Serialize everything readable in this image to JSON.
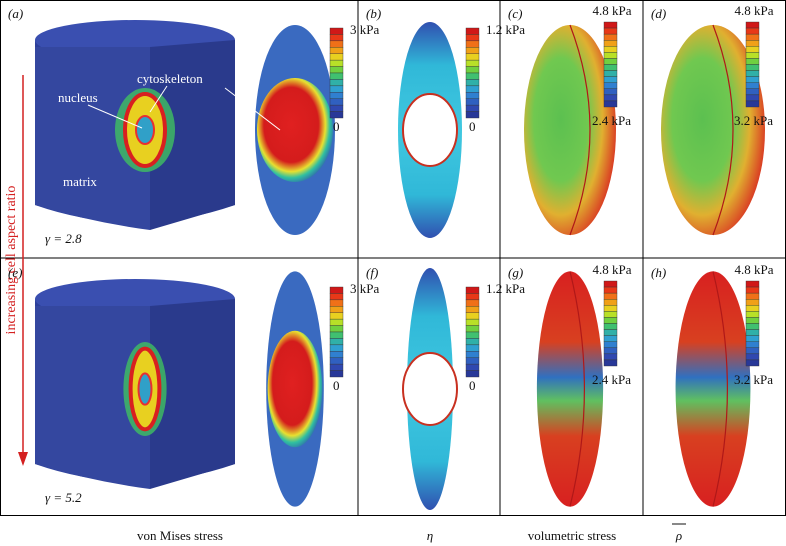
{
  "side_label": "increasing cell aspect ratio",
  "panels": [
    {
      "label": "(a)",
      "scale_max": "3 kPa",
      "scale_min": "0",
      "gamma": "γ = 2.8",
      "annotations": [
        "nucleus",
        "cytoskeleton",
        "matrix"
      ]
    },
    {
      "label": "(b)",
      "scale_max": "1.2 kPa",
      "scale_min": "0"
    },
    {
      "label": "(c)",
      "scale_max": "4.8 kPa",
      "scale_min": "2.4 kPa"
    },
    {
      "label": "(d)",
      "scale_max": "4.8 kPa",
      "scale_min": "3.2 kPa"
    },
    {
      "label": "(e)",
      "scale_max": "3 kPa",
      "scale_min": "0",
      "gamma": "γ = 5.2"
    },
    {
      "label": "(f)",
      "scale_max": "1.2 kPa",
      "scale_min": "0"
    },
    {
      "label": "(g)",
      "scale_max": "4.8 kPa",
      "scale_min": "2.4 kPa"
    },
    {
      "label": "(h)",
      "scale_max": "4.8 kPa",
      "scale_min": "3.2 kPa"
    }
  ],
  "captions": [
    "von Mises stress",
    "η",
    "volumetric stress",
    "ρ"
  ]
}
